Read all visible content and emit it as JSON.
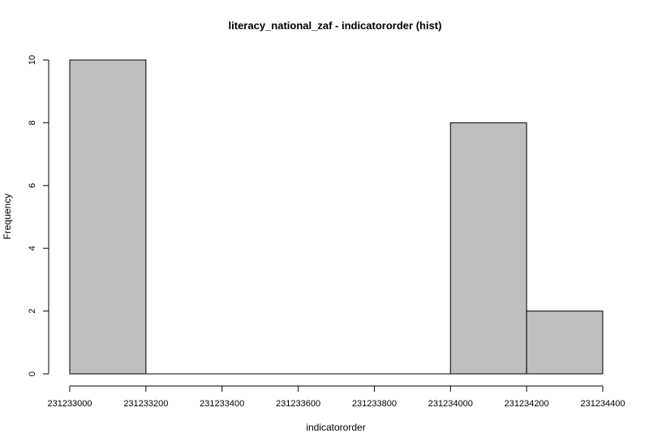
{
  "chart_data": {
    "type": "bar",
    "title": "literacy_national_zaf - indicatororder (hist)",
    "xlabel": "indicatororder",
    "ylabel": "Frequency",
    "bins": [
      {
        "from": 231233000,
        "to": 231233200,
        "count": 10
      },
      {
        "from": 231233200,
        "to": 231233400,
        "count": 0
      },
      {
        "from": 231233400,
        "to": 231233600,
        "count": 0
      },
      {
        "from": 231233600,
        "to": 231233800,
        "count": 0
      },
      {
        "from": 231233800,
        "to": 231234000,
        "count": 0
      },
      {
        "from": 231234000,
        "to": 231234200,
        "count": 8
      },
      {
        "from": 231234200,
        "to": 231234400,
        "count": 2
      }
    ],
    "xlim": [
      231233000,
      231234400
    ],
    "ylim": [
      0,
      10
    ],
    "x_ticks": [
      "231233000",
      "231233200",
      "231233400",
      "231233600",
      "231233800",
      "231234000",
      "231234200",
      "231234400"
    ],
    "y_ticks": [
      "0",
      "2",
      "4",
      "6",
      "8",
      "10"
    ],
    "bar_fill": "#bfbfbf",
    "bar_stroke": "#000000",
    "grid": false
  }
}
